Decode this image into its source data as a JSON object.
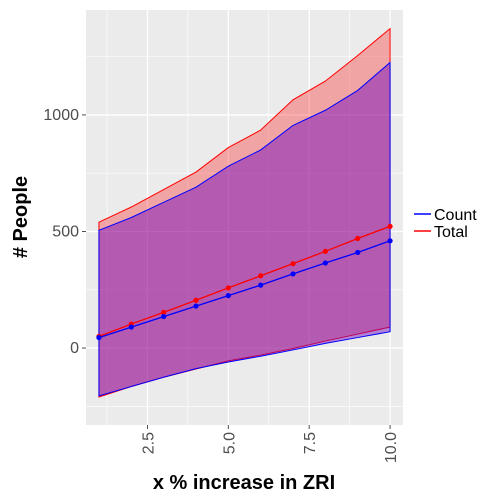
{
  "chart_data": {
    "type": "area",
    "title": "",
    "xlabel": "x % increase in ZRI",
    "ylabel": "# People",
    "xlim": [
      0.6,
      10.4
    ],
    "ylim": [
      -330,
      1450
    ],
    "x_ticks": [
      2.5,
      5.0,
      7.5,
      10.0
    ],
    "x_tick_labels": [
      "2.5",
      "5.0",
      "7.5",
      "10.0"
    ],
    "y_ticks": [
      0,
      500,
      1000
    ],
    "y_tick_labels": [
      "0",
      "500",
      "1000"
    ],
    "grid": true,
    "legend_position": "right",
    "x": [
      1,
      2,
      3,
      4,
      5,
      6,
      7,
      8,
      9,
      10
    ],
    "series": [
      {
        "name": "Count",
        "color": "#0000ff",
        "fill": "#6a00c0",
        "values": [
          45,
          90,
          135,
          180,
          225,
          270,
          318,
          365,
          410,
          460
        ],
        "upper": [
          505,
          560,
          625,
          690,
          780,
          850,
          955,
          1020,
          1105,
          1225
        ],
        "lower": [
          -205,
          -165,
          -125,
          -88,
          -60,
          -35,
          -8,
          20,
          45,
          70
        ]
      },
      {
        "name": "Total",
        "color": "#ff0000",
        "fill": "#ff0000",
        "values": [
          50,
          103,
          153,
          205,
          258,
          310,
          362,
          415,
          470,
          522
        ],
        "upper": [
          540,
          605,
          680,
          755,
          860,
          935,
          1065,
          1145,
          1255,
          1370
        ],
        "lower": [
          -210,
          -165,
          -125,
          -90,
          -55,
          -30,
          -2,
          30,
          60,
          90
        ]
      }
    ]
  }
}
